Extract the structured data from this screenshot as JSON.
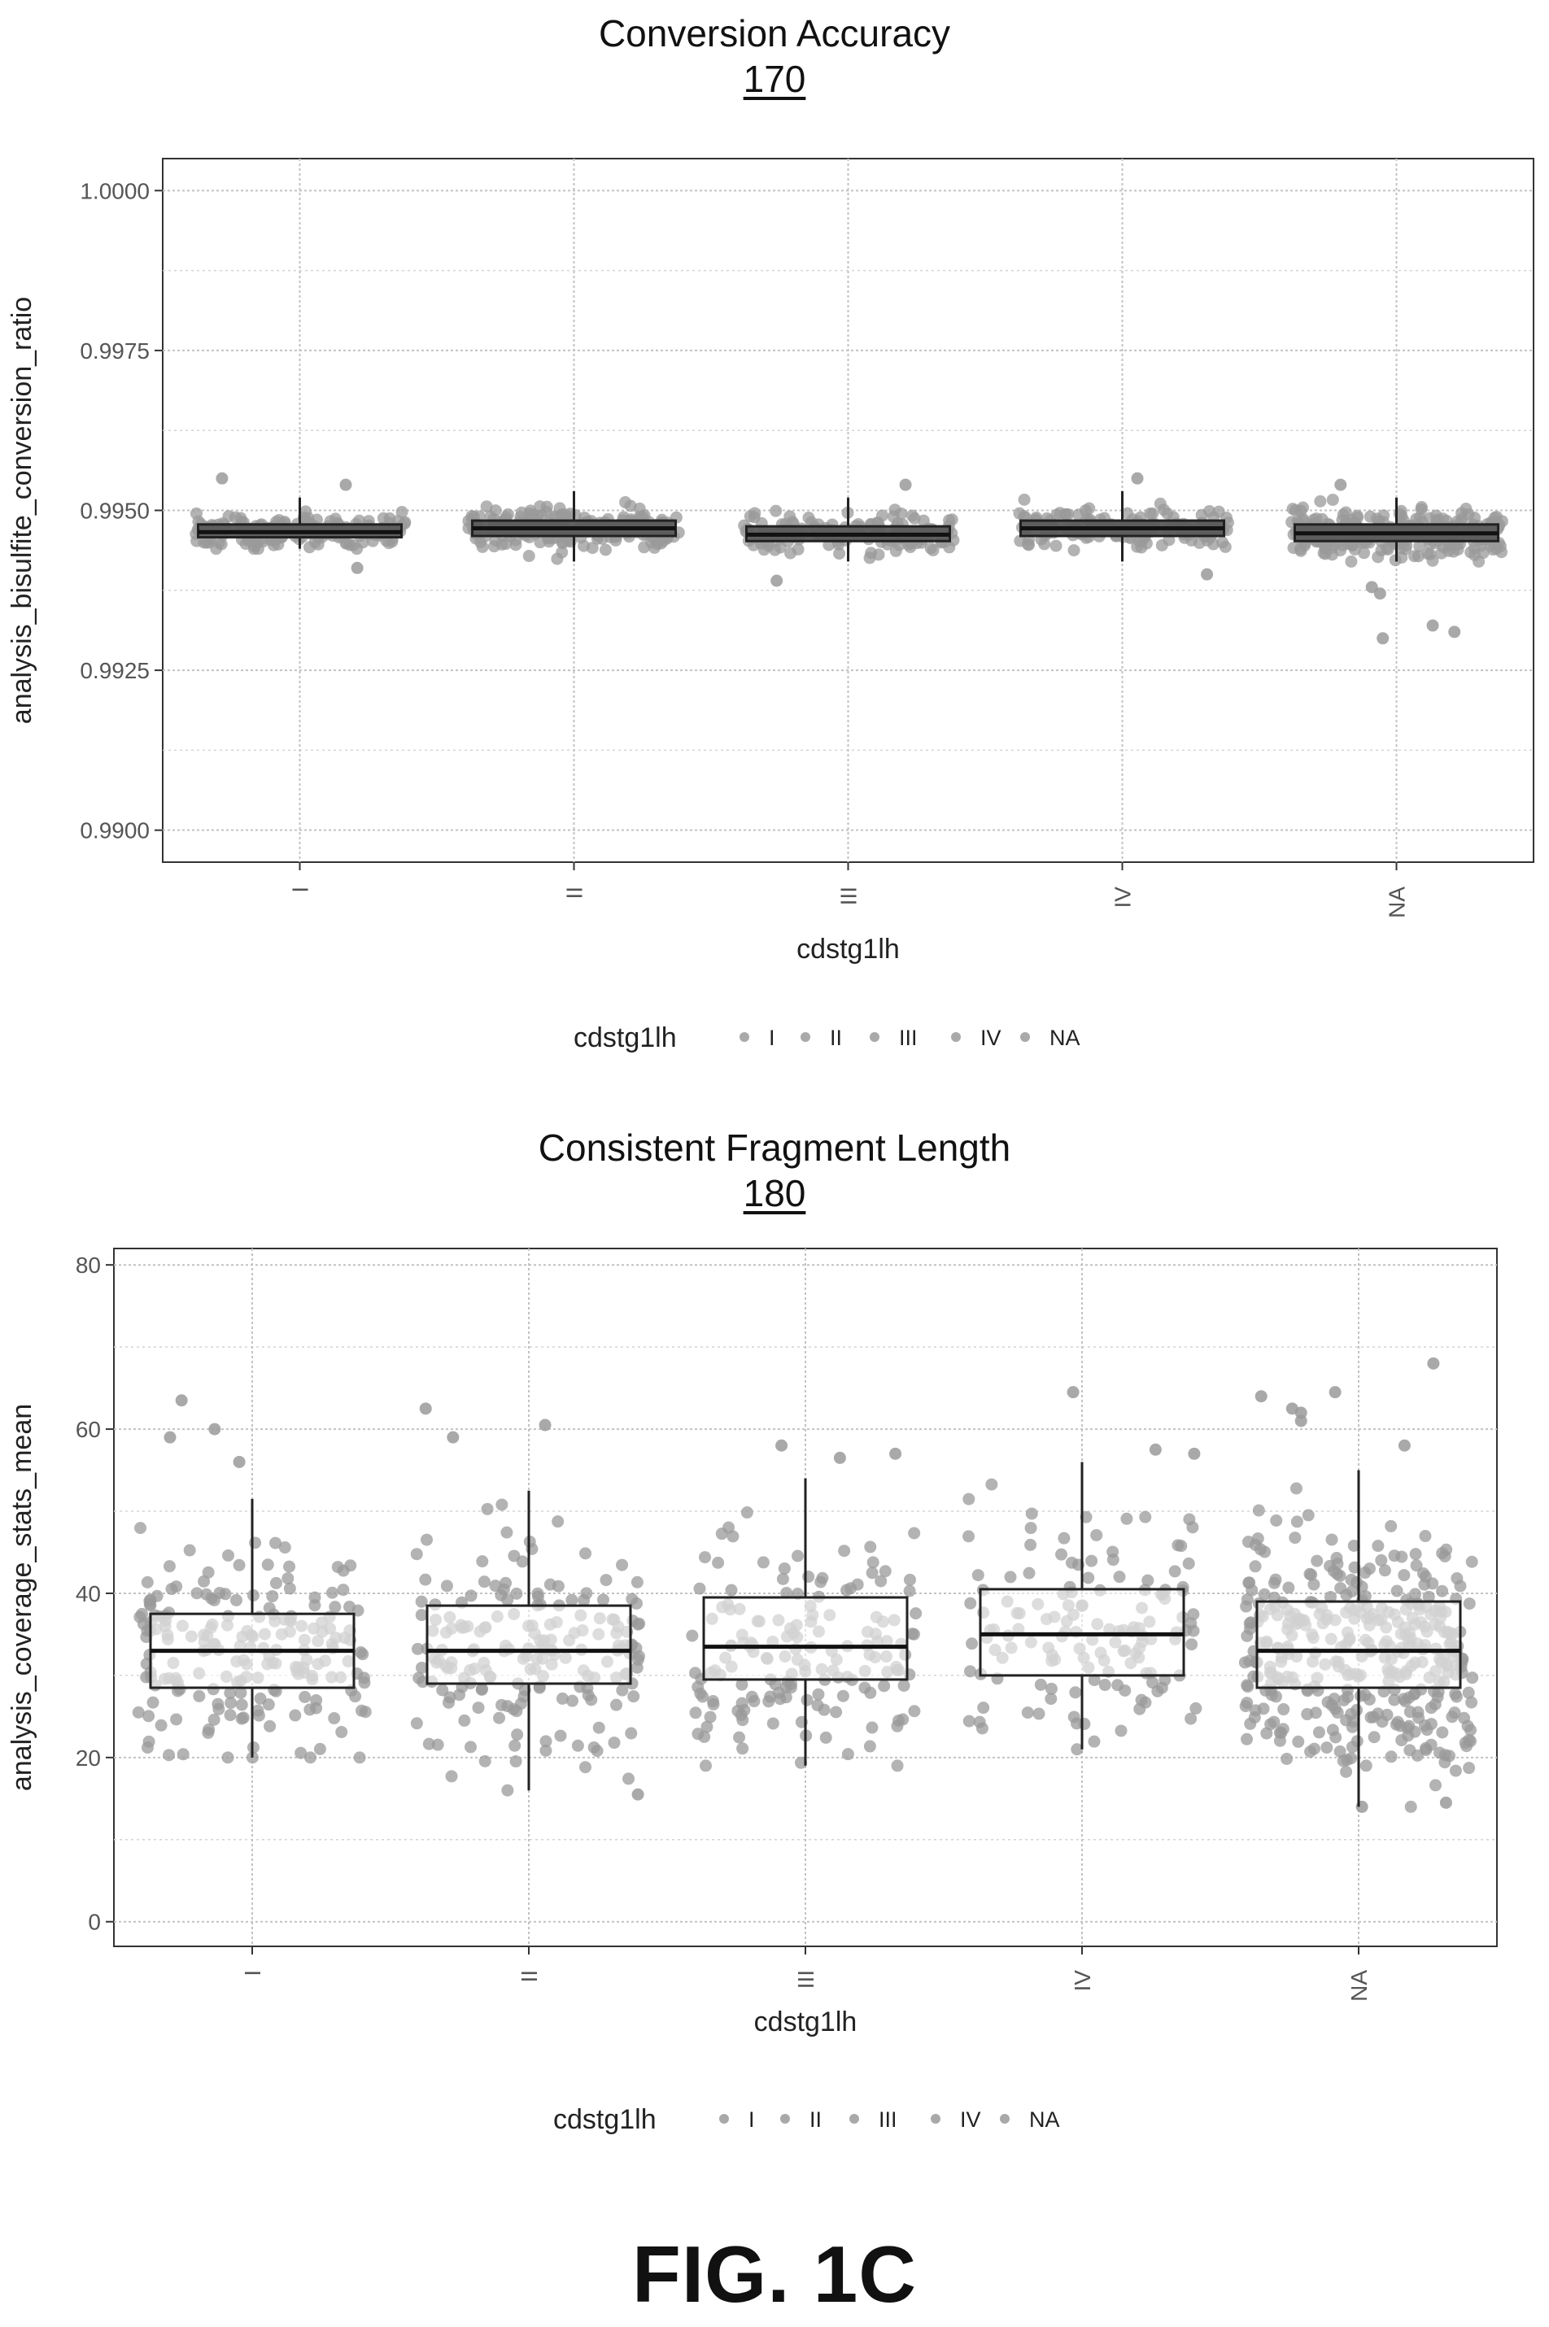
{
  "figure_label": "FIG. 1C",
  "chart_data": [
    {
      "type": "box",
      "title": "Conversion Accuracy",
      "reference_number": "170",
      "xlabel": "cdstg1lh",
      "ylabel": "analysis_bisulfite_conversion_ratio",
      "categories": [
        "I",
        "II",
        "III",
        "IV",
        "NA"
      ],
      "ylim": [
        0.9895,
        1.0005
      ],
      "yticks": [
        0.99,
        0.9925,
        0.995,
        0.9975,
        1.0
      ],
      "ytick_labels": [
        "0.9900",
        "0.9925",
        "0.9950",
        "0.9975",
        "1.0000"
      ],
      "grid": true,
      "legend": {
        "title": "cdstg1lh",
        "entries": [
          "I",
          "II",
          "III",
          "IV",
          "NA"
        ],
        "placement": "bottom"
      },
      "colors": {
        "points": "#9a9a9a",
        "box_fill": "#5a5a5a",
        "box_stroke": "#222222"
      },
      "boxes": [
        {
          "category": "I",
          "min": 0.9944,
          "q1": 0.99458,
          "median": 0.99466,
          "q3": 0.99478,
          "max": 0.9952
        },
        {
          "category": "II",
          "min": 0.9942,
          "q1": 0.9946,
          "median": 0.99472,
          "q3": 0.99484,
          "max": 0.9953
        },
        {
          "category": "III",
          "min": 0.9942,
          "q1": 0.99452,
          "median": 0.99462,
          "q3": 0.99475,
          "max": 0.9952
        },
        {
          "category": "IV",
          "min": 0.9942,
          "q1": 0.9946,
          "median": 0.99472,
          "q3": 0.99484,
          "max": 0.9953
        },
        {
          "category": "NA",
          "min": 0.9942,
          "q1": 0.99452,
          "median": 0.99464,
          "q3": 0.99478,
          "max": 0.9952
        }
      ],
      "outliers": [
        {
          "category": "I",
          "values": [
            0.9955,
            0.9954,
            0.9941
          ]
        },
        {
          "category": "III",
          "values": [
            0.9939,
            0.9954
          ]
        },
        {
          "category": "IV",
          "values": [
            0.9955,
            0.994
          ]
        },
        {
          "category": "NA",
          "values": [
            0.9938,
            0.9932,
            0.9937,
            0.993,
            0.9931,
            0.9954
          ]
        }
      ]
    },
    {
      "type": "box",
      "title": "Consistent Fragment Length",
      "reference_number": "180",
      "xlabel": "cdstg1lh",
      "ylabel": "analysis_coverage_stats_mean",
      "categories": [
        "I",
        "II",
        "III",
        "IV",
        "NA"
      ],
      "ylim": [
        -3,
        82
      ],
      "yticks": [
        0,
        20,
        40,
        60,
        80
      ],
      "ytick_labels": [
        "0",
        "20",
        "40",
        "60",
        "80"
      ],
      "grid": true,
      "legend": {
        "title": "cdstg1lh",
        "entries": [
          "I",
          "II",
          "III",
          "IV",
          "NA"
        ],
        "placement": "bottom"
      },
      "colors": {
        "points": "#9a9a9a",
        "box_fill": "#ffffff",
        "box_stroke": "#222222"
      },
      "boxes": [
        {
          "category": "I",
          "min": 20,
          "q1": 28.5,
          "median": 33,
          "q3": 37.5,
          "max": 51.5
        },
        {
          "category": "II",
          "min": 16,
          "q1": 29,
          "median": 33,
          "q3": 38.5,
          "max": 52.5
        },
        {
          "category": "III",
          "min": 19,
          "q1": 29.5,
          "median": 33.5,
          "q3": 39.5,
          "max": 54
        },
        {
          "category": "IV",
          "min": 21,
          "q1": 30,
          "median": 35,
          "q3": 40.5,
          "max": 56
        },
        {
          "category": "NA",
          "min": 14,
          "q1": 28.5,
          "median": 33,
          "q3": 39,
          "max": 55
        }
      ],
      "outliers": [
        {
          "category": "I",
          "values": [
            56,
            59,
            60,
            63.5
          ]
        },
        {
          "category": "II",
          "values": [
            60.5,
            62.5,
            59,
            15.5
          ]
        },
        {
          "category": "III",
          "values": [
            58,
            57,
            56.5
          ]
        },
        {
          "category": "IV",
          "values": [
            64.5,
            57,
            57.5
          ]
        },
        {
          "category": "NA",
          "values": [
            64,
            64.5,
            68,
            62,
            62.5,
            61,
            58,
            14,
            14.5
          ]
        }
      ]
    }
  ]
}
